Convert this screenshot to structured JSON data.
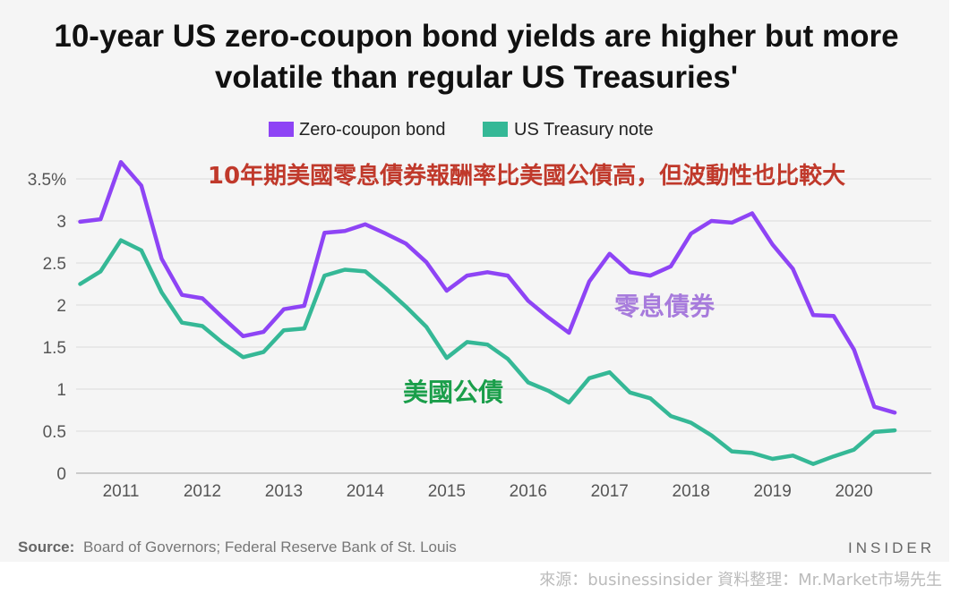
{
  "chart_data": {
    "type": "line",
    "title_line1": "10-year US zero-coupon bond yields are higher but more",
    "title_line2": "volatile than regular US Treasuries'",
    "ylim": [
      0,
      3.5
    ],
    "y_ticks": [
      {
        "value": 0,
        "label": "0"
      },
      {
        "value": 0.5,
        "label": "0.5"
      },
      {
        "value": 1,
        "label": "1"
      },
      {
        "value": 1.5,
        "label": "1.5"
      },
      {
        "value": 2,
        "label": "2"
      },
      {
        "value": 2.5,
        "label": "2.5"
      },
      {
        "value": 3,
        "label": "3"
      },
      {
        "value": 3.5,
        "label": "3.5%"
      }
    ],
    "x_ticks": [
      {
        "value": 2011,
        "label": "2011"
      },
      {
        "value": 2012,
        "label": "2012"
      },
      {
        "value": 2013,
        "label": "2013"
      },
      {
        "value": 2014,
        "label": "2014"
      },
      {
        "value": 2015,
        "label": "2015"
      },
      {
        "value": 2016,
        "label": "2016"
      },
      {
        "value": 2017,
        "label": "2017"
      },
      {
        "value": 2018,
        "label": "2018"
      },
      {
        "value": 2019,
        "label": "2019"
      },
      {
        "value": 2020,
        "label": "2020"
      }
    ],
    "xlim": [
      2010.45,
      2020.95
    ],
    "legend_position": "top-center",
    "grid": true,
    "x": [
      2010.5,
      2010.75,
      2011.0,
      2011.25,
      2011.5,
      2011.75,
      2012.0,
      2012.25,
      2012.5,
      2012.75,
      2013.0,
      2013.25,
      2013.5,
      2013.75,
      2014.0,
      2014.25,
      2014.5,
      2014.75,
      2015.0,
      2015.25,
      2015.5,
      2015.75,
      2016.0,
      2016.25,
      2016.5,
      2016.75,
      2017.0,
      2017.25,
      2017.5,
      2017.75,
      2018.0,
      2018.25,
      2018.5,
      2018.75,
      2019.0,
      2019.25,
      2019.5,
      2019.75,
      2020.0,
      2020.25,
      2020.5
    ],
    "series": [
      {
        "name": "Zero-coupon bond",
        "color": "#8e44f5",
        "values": [
          2.99,
          3.02,
          3.7,
          3.42,
          2.55,
          2.12,
          2.08,
          1.85,
          1.63,
          1.68,
          1.95,
          1.99,
          2.86,
          2.88,
          2.96,
          2.85,
          2.73,
          2.51,
          2.17,
          2.35,
          2.39,
          2.35,
          2.05,
          1.85,
          1.67,
          2.28,
          2.61,
          2.39,
          2.35,
          2.46,
          2.85,
          3.0,
          2.98,
          3.09,
          2.72,
          2.43,
          1.88,
          1.87,
          1.47,
          0.79,
          0.72
        ]
      },
      {
        "name": "US Treasury note",
        "color": "#35b896",
        "values": [
          2.25,
          2.4,
          2.77,
          2.65,
          2.15,
          1.79,
          1.75,
          1.55,
          1.38,
          1.44,
          1.7,
          1.72,
          2.35,
          2.42,
          2.4,
          2.2,
          1.98,
          1.74,
          1.37,
          1.56,
          1.53,
          1.36,
          1.08,
          0.98,
          0.84,
          1.13,
          1.2,
          0.96,
          0.89,
          0.68,
          0.6,
          0.45,
          0.26,
          0.24,
          0.17,
          0.21,
          0.11,
          0.2,
          0.28,
          0.49,
          0.51
        ]
      }
    ],
    "annotations": {
      "headline_cn": "10年期美國零息債券報酬率比美國公債高，但波動性也比較大",
      "zero_coupon_cn": "零息債券",
      "treasury_cn": "美國公債"
    },
    "source_label": "Source:",
    "source_text": "Board of Governors; Federal Reserve Bank of St. Louis",
    "brand": "INSIDER",
    "credit": "來源：businessinsider  資料整理：Mr.Market市場先生"
  }
}
